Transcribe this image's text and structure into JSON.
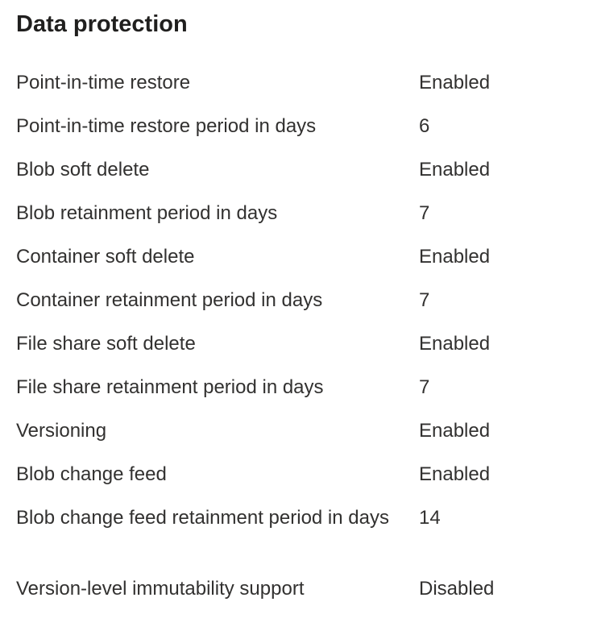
{
  "section": {
    "title": "Data protection"
  },
  "properties": [
    {
      "label": "Point-in-time restore",
      "value": "Enabled"
    },
    {
      "label": "Point-in-time restore period in days",
      "value": "6"
    },
    {
      "label": "Blob soft delete",
      "value": "Enabled"
    },
    {
      "label": "Blob retainment period in days",
      "value": "7"
    },
    {
      "label": "Container soft delete",
      "value": "Enabled"
    },
    {
      "label": "Container retainment period in days",
      "value": "7"
    },
    {
      "label": "File share soft delete",
      "value": "Enabled"
    },
    {
      "label": "File share retainment period in days",
      "value": "7"
    },
    {
      "label": "Versioning",
      "value": "Enabled"
    },
    {
      "label": "Blob change feed",
      "value": "Enabled"
    },
    {
      "label": "Blob change feed retainment period in days",
      "value": "14"
    },
    {
      "label": "Version-level immutability support",
      "value": "Disabled"
    }
  ]
}
